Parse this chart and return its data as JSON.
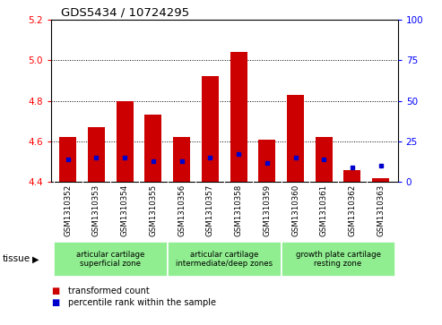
{
  "title": "GDS5434 / 10724295",
  "samples": [
    "GSM1310352",
    "GSM1310353",
    "GSM1310354",
    "GSM1310355",
    "GSM1310356",
    "GSM1310357",
    "GSM1310358",
    "GSM1310359",
    "GSM1310360",
    "GSM1310361",
    "GSM1310362",
    "GSM1310363"
  ],
  "red_values": [
    4.62,
    4.67,
    4.8,
    4.73,
    4.62,
    4.92,
    5.04,
    4.61,
    4.83,
    4.62,
    4.46,
    4.42
  ],
  "blue_values_pct": [
    14,
    15,
    15,
    13,
    13,
    15,
    17,
    12,
    15,
    14,
    9,
    10
  ],
  "ymin": 4.4,
  "ymax": 5.2,
  "yticks_red": [
    4.4,
    4.6,
    4.8,
    5.0,
    5.2
  ],
  "yticks_blue": [
    0,
    25,
    50,
    75,
    100
  ],
  "red_color": "#cc0000",
  "blue_color": "#0000cc",
  "bg_color_sample": "#c8c8c8",
  "plot_bg_color": "#ffffff",
  "tissue_groups": [
    {
      "label": "articular cartilage\nsuperficial zone",
      "start": 0,
      "end": 3,
      "color": "#90ee90"
    },
    {
      "label": "articular cartilage\nintermediate/deep zones",
      "start": 4,
      "end": 7,
      "color": "#90ee90"
    },
    {
      "label": "growth plate cartilage\nresting zone",
      "start": 8,
      "end": 11,
      "color": "#90ee90"
    }
  ],
  "legend_red": "transformed count",
  "legend_blue": "percentile rank within the sample",
  "tissue_label": "tissue",
  "bar_width": 0.6
}
